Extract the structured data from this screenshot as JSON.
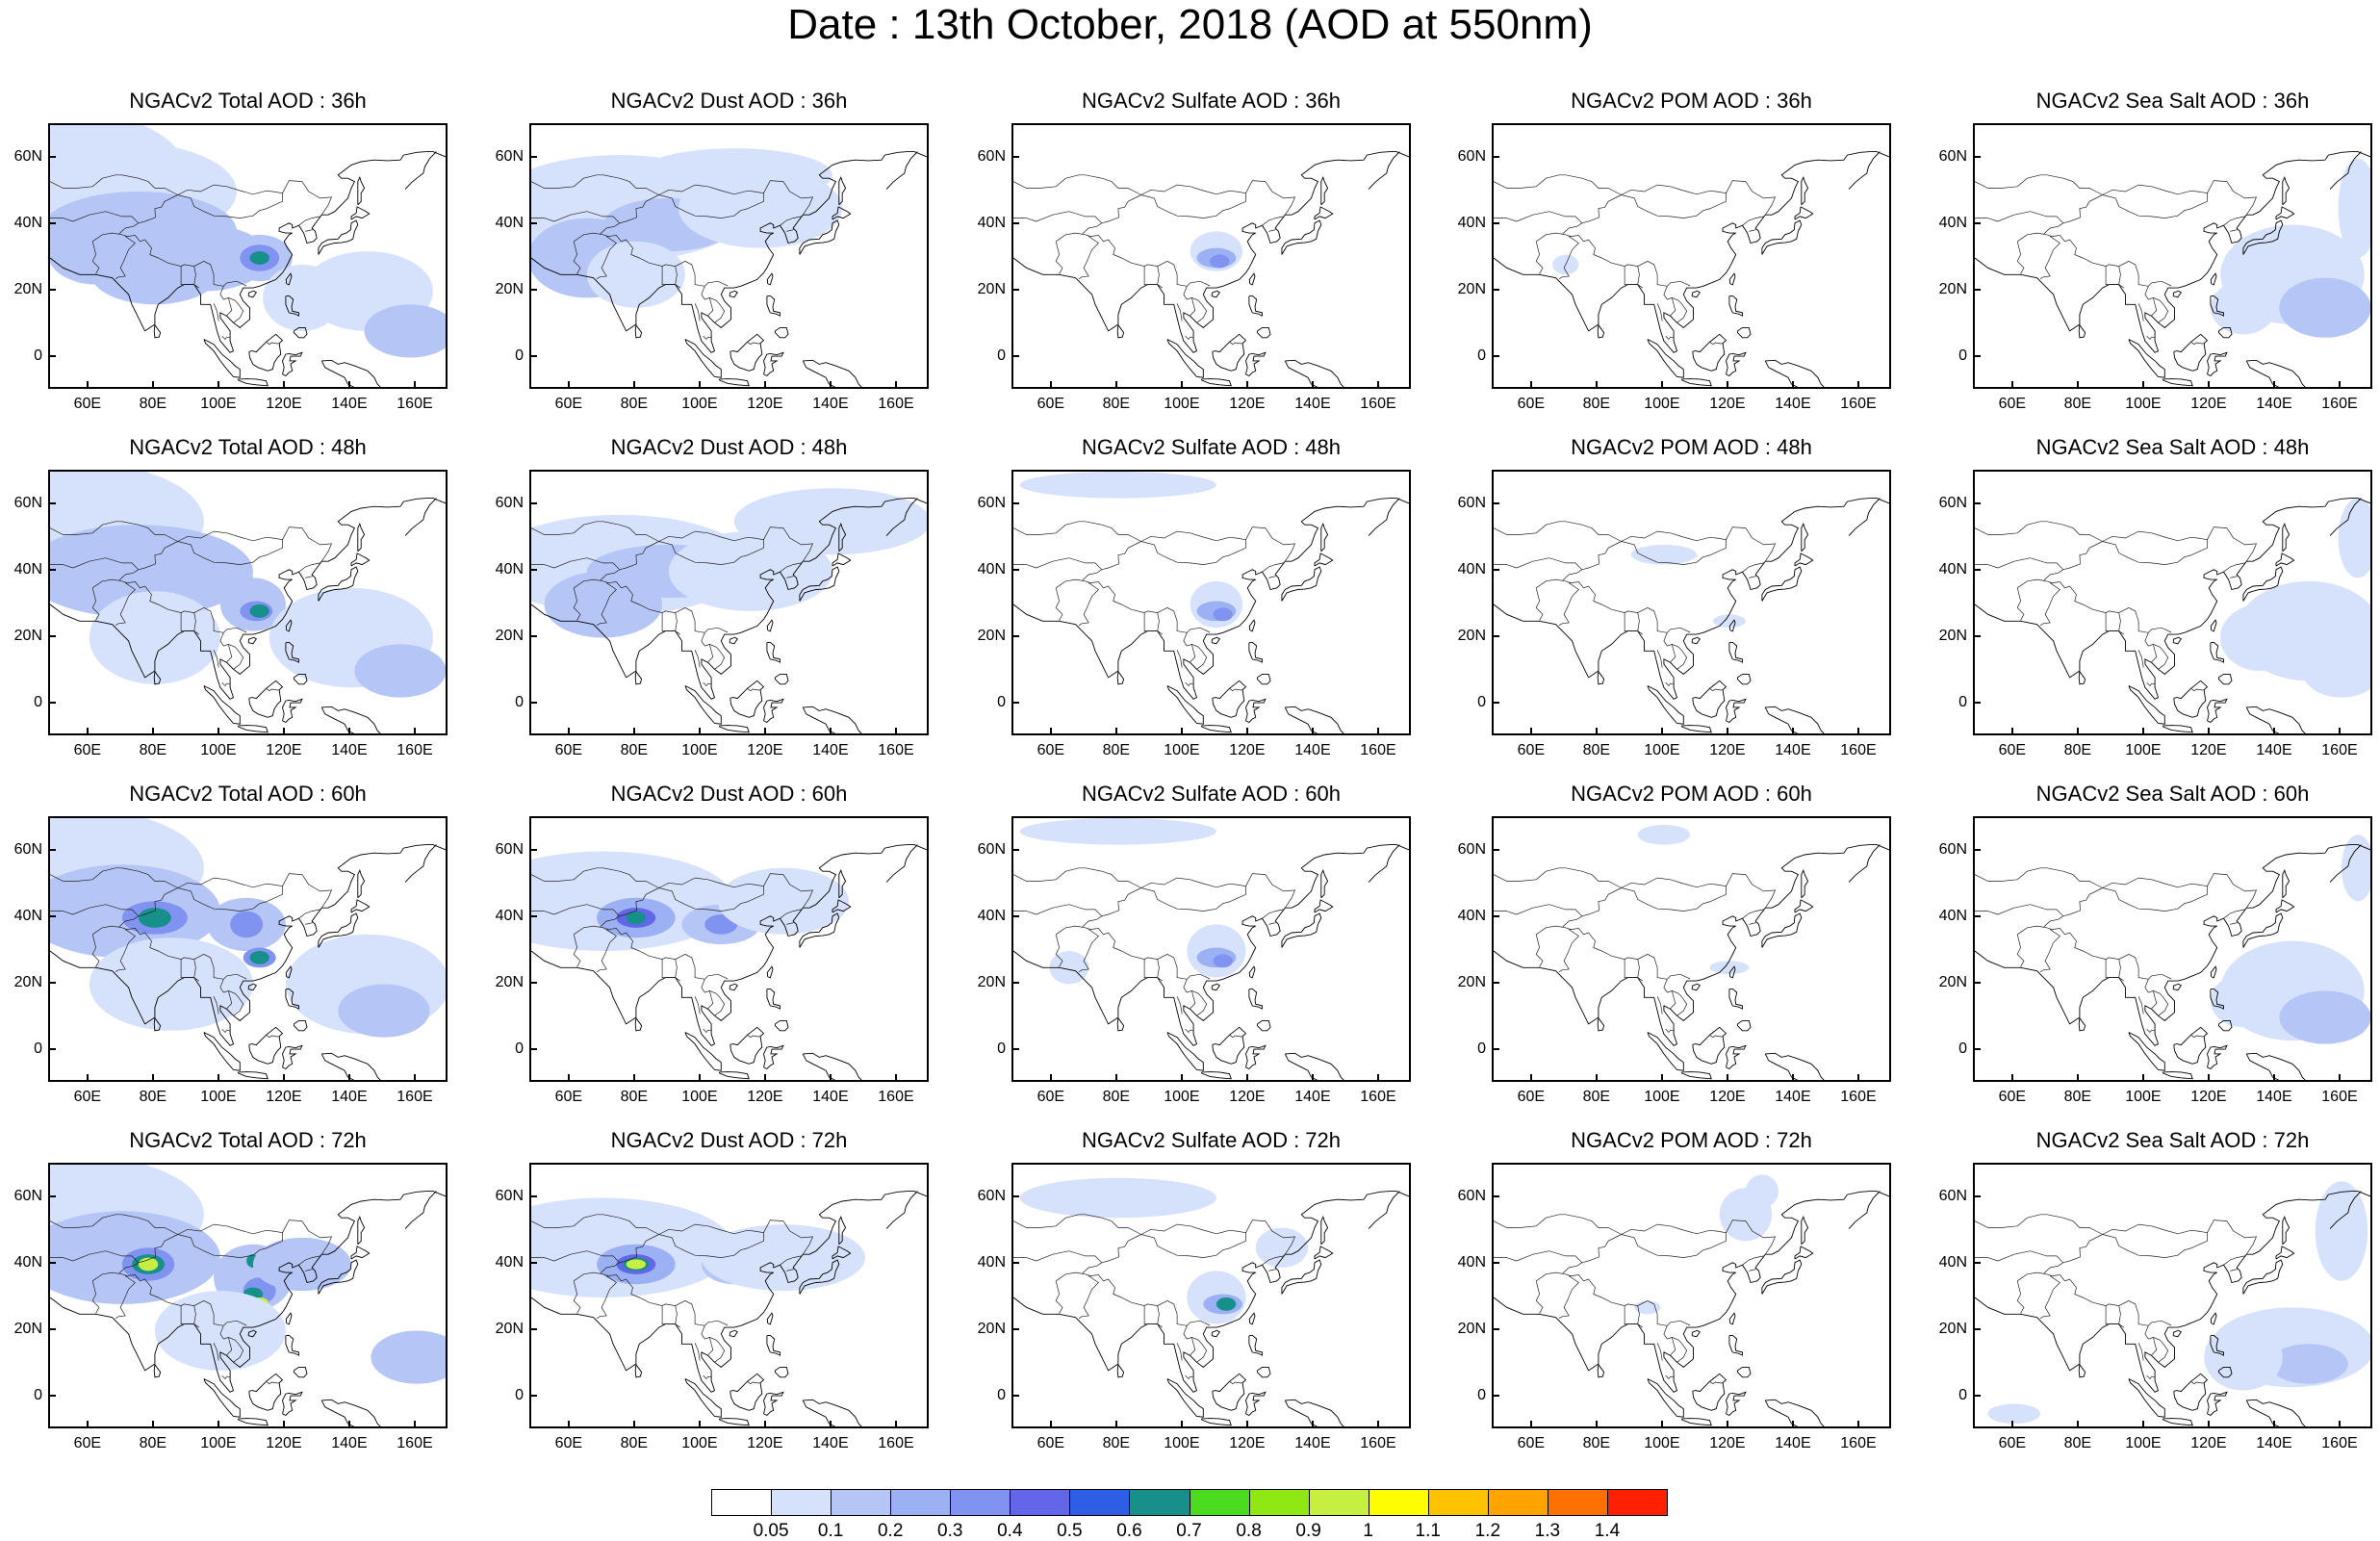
{
  "title": "Date : 13th October, 2018 (AOD at 550nm)",
  "panels": [
    {
      "title": "NGACv2 Total AOD : 36h",
      "type": "total",
      "hour": 36
    },
    {
      "title": "NGACv2 Dust AOD : 36h",
      "type": "dust",
      "hour": 36
    },
    {
      "title": "NGACv2 Sulfate AOD : 36h",
      "type": "sulfate",
      "hour": 36
    },
    {
      "title": "NGACv2 POM AOD : 36h",
      "type": "pom",
      "hour": 36
    },
    {
      "title": "NGACv2 Sea Salt AOD : 36h",
      "type": "seasalt",
      "hour": 36
    },
    {
      "title": "NGACv2 Total AOD : 48h",
      "type": "total",
      "hour": 48
    },
    {
      "title": "NGACv2 Dust AOD : 48h",
      "type": "dust",
      "hour": 48
    },
    {
      "title": "NGACv2 Sulfate AOD : 48h",
      "type": "sulfate",
      "hour": 48
    },
    {
      "title": "NGACv2 POM AOD : 48h",
      "type": "pom",
      "hour": 48
    },
    {
      "title": "NGACv2 Sea Salt AOD : 48h",
      "type": "seasalt",
      "hour": 48
    },
    {
      "title": "NGACv2 Total AOD : 60h",
      "type": "total",
      "hour": 60
    },
    {
      "title": "NGACv2 Dust AOD : 60h",
      "type": "dust",
      "hour": 60
    },
    {
      "title": "NGACv2 Sulfate AOD : 60h",
      "type": "sulfate",
      "hour": 60
    },
    {
      "title": "NGACv2 POM AOD : 60h",
      "type": "pom",
      "hour": 60
    },
    {
      "title": "NGACv2 Sea Salt AOD : 60h",
      "type": "seasalt",
      "hour": 60
    },
    {
      "title": "NGACv2 Total AOD : 72h",
      "type": "total",
      "hour": 72
    },
    {
      "title": "NGACv2 Dust AOD : 72h",
      "type": "dust",
      "hour": 72
    },
    {
      "title": "NGACv2 Sulfate AOD : 72h",
      "type": "sulfate",
      "hour": 72
    },
    {
      "title": "NGACv2 POM AOD : 72h",
      "type": "pom",
      "hour": 72
    },
    {
      "title": "NGACv2 Sea Salt  AOD : 72h",
      "type": "seasalt",
      "hour": 72
    }
  ],
  "map_extent": {
    "lon": [
      48,
      170
    ],
    "lat": [
      -10,
      70
    ]
  },
  "lat_ticks": [
    {
      "value": 60,
      "label": "60N"
    },
    {
      "value": 40,
      "label": "40N"
    },
    {
      "value": 20,
      "label": "20N"
    },
    {
      "value": 0,
      "label": "0"
    }
  ],
  "lon_ticks": [
    {
      "value": 60,
      "label": "60E"
    },
    {
      "value": 80,
      "label": "80E"
    },
    {
      "value": 100,
      "label": "100E"
    },
    {
      "value": 120,
      "label": "120E"
    },
    {
      "value": 140,
      "label": "140E"
    },
    {
      "value": 160,
      "label": "160E"
    }
  ],
  "colorbar": {
    "labels": [
      "0.05",
      "0.1",
      "0.2",
      "0.3",
      "0.4",
      "0.5",
      "0.6",
      "0.7",
      "0.8",
      "0.9",
      "1",
      "1.1",
      "1.2",
      "1.3",
      "1.4"
    ],
    "colors": [
      "#ffffff",
      "#d6e1fb",
      "#b5c6f6",
      "#9bb1f3",
      "#8193f0",
      "#6366e8",
      "#2f5ee6",
      "#178f8b",
      "#4cdc1f",
      "#8fe813",
      "#c6ef42",
      "#fefe00",
      "#fec300",
      "#fea300",
      "#fe7000",
      "#fe2000"
    ]
  }
}
